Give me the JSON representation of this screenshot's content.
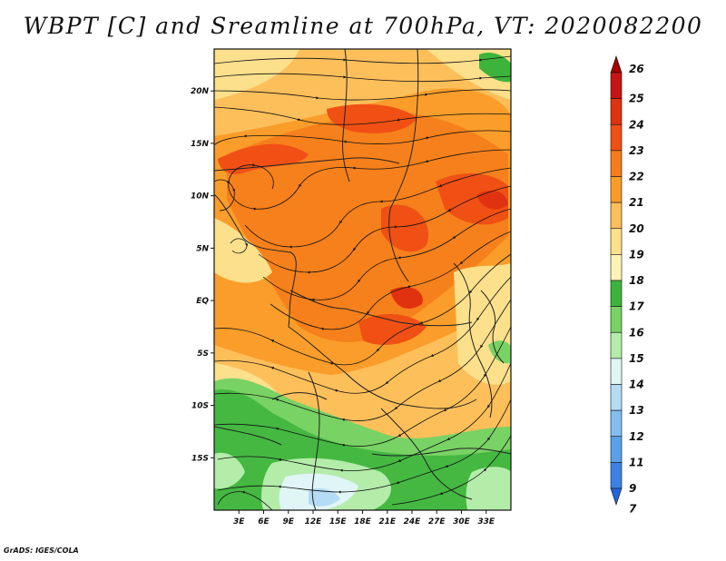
{
  "title": "WBPT [C] and Sreamline at 700hPa, VT: 2020082200",
  "footer": "GrADS: IGES/COLA",
  "map": {
    "lon_range": [
      0,
      36
    ],
    "lat_range": [
      -20,
      24
    ],
    "lat_ticks": [
      {
        "value": 20,
        "label": "20N"
      },
      {
        "value": 15,
        "label": "15N"
      },
      {
        "value": 10,
        "label": "10N"
      },
      {
        "value": 5,
        "label": "5N"
      },
      {
        "value": 0,
        "label": "EQ"
      },
      {
        "value": -5,
        "label": "5S"
      },
      {
        "value": -10,
        "label": "10S"
      },
      {
        "value": -15,
        "label": "15S"
      }
    ],
    "lon_ticks": [
      {
        "value": 3,
        "label": "3E"
      },
      {
        "value": 6,
        "label": "6E"
      },
      {
        "value": 9,
        "label": "9E"
      },
      {
        "value": 12,
        "label": "12E"
      },
      {
        "value": 15,
        "label": "15E"
      },
      {
        "value": 18,
        "label": "18E"
      },
      {
        "value": 21,
        "label": "21E"
      },
      {
        "value": 24,
        "label": "24E"
      },
      {
        "value": 27,
        "label": "27E"
      },
      {
        "value": 30,
        "label": "30E"
      },
      {
        "value": 33,
        "label": "33E"
      }
    ]
  },
  "colorbar": {
    "levels": [
      {
        "label": "26",
        "color": "#a50000"
      },
      {
        "label": "25",
        "color": "#c81414"
      },
      {
        "label": "24",
        "color": "#e1320f"
      },
      {
        "label": "23",
        "color": "#f05014"
      },
      {
        "label": "22",
        "color": "#f57d19"
      },
      {
        "label": "21",
        "color": "#fa9b28"
      },
      {
        "label": "20",
        "color": "#fdbf5a"
      },
      {
        "label": "19",
        "color": "#fde08c"
      },
      {
        "label": "18",
        "color": "#fff3b4"
      },
      {
        "label": "17",
        "color": "#3cb43c"
      },
      {
        "label": "16",
        "color": "#78d264"
      },
      {
        "label": "15",
        "color": "#b4ecaa"
      },
      {
        "label": "14",
        "color": "#e0f5f5"
      },
      {
        "label": "13",
        "color": "#b4dcf5"
      },
      {
        "label": "12",
        "color": "#82bef0"
      },
      {
        "label": "11",
        "color": "#5aa0eb"
      },
      {
        "label": "9",
        "color": "#3c82e6"
      },
      {
        "label": "7",
        "color": "#2364dc"
      }
    ]
  }
}
